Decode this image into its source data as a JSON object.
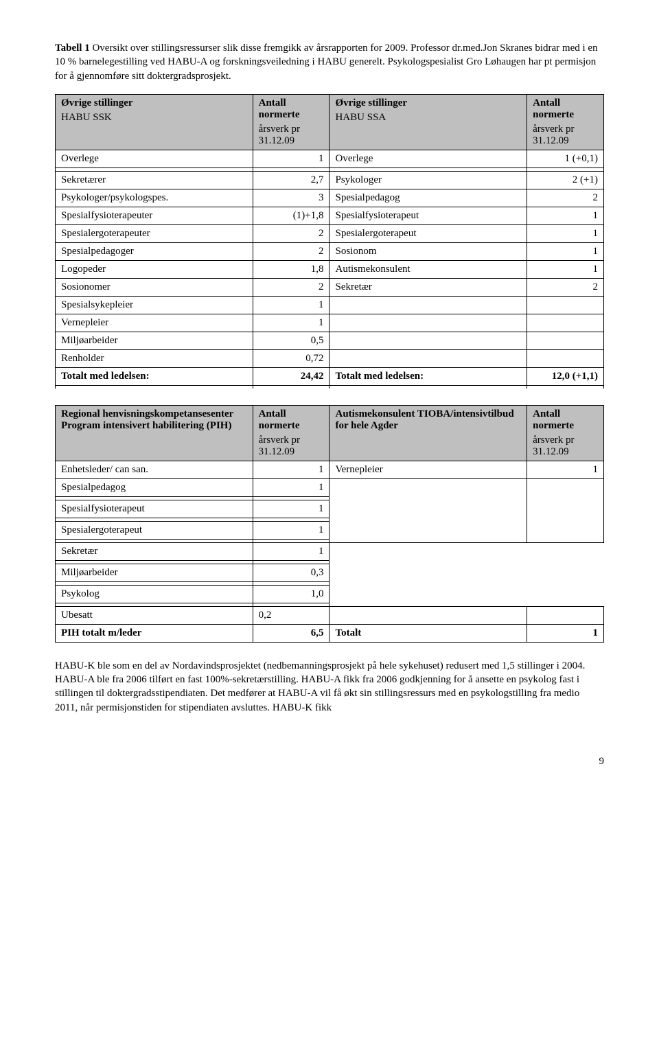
{
  "intro": {
    "strong": "Tabell 1",
    "rest": " Oversikt over stillingsressurser slik disse fremgikk av årsrapporten for 2009. Professor dr.med.Jon Skranes bidrar med  i en 10 % barnelegestilling ved HABU-A og forskningsveiledning i HABU generelt. Psykologspesialist Gro Løhaugen har pt permisjon for å gjennomføre sitt doktergradsprosjekt."
  },
  "table1": {
    "header": {
      "c1a": "Øvrige stillinger",
      "c1b": "HABU SSK",
      "c2a": "Antall normerte",
      "c2b": "årsverk pr 31.12.09",
      "c3a": "Øvrige stillinger",
      "c3b": "HABU SSA",
      "c4a": "Antall normerte",
      "c4b": "årsverk pr 31.12.09"
    },
    "overlege": {
      "l1": "Overlege",
      "v1": "1",
      "l2": "Overlege",
      "v2": "1 (+0,1)"
    },
    "rows": [
      {
        "l1": "Sekretærer",
        "v1": "2,7",
        "l2": "Psykologer",
        "v2": "2 (+1)"
      },
      {
        "l1": "Psykologer/psykologspes.",
        "v1": "3",
        "l2": "Spesialpedagog",
        "v2": "2"
      },
      {
        "l1": "Spesialfysioterapeuter",
        "v1": "(1)+1,8",
        "l2": "Spesialfysioterapeut",
        "v2": "1"
      },
      {
        "l1": "Spesialergoterapeuter",
        "v1": "2",
        "l2": "Spesialergoterapeut",
        "v2": "1"
      },
      {
        "l1": "Spesialpedagoger",
        "v1": "2",
        "l2": "Sosionom",
        "v2": "1"
      },
      {
        "l1": "Logopeder",
        "v1": "1,8",
        "l2": "Autismekonsulent",
        "v2": "1"
      },
      {
        "l1": "Sosionomer",
        "v1": "2",
        "l2": "Sekretær",
        "v2": "2"
      },
      {
        "l1": "Spesialsykepleier",
        "v1": "1",
        "l2": "",
        "v2": ""
      },
      {
        "l1": "Vernepleier",
        "v1": "1",
        "l2": "",
        "v2": ""
      },
      {
        "l1": "Miljøarbeider",
        "v1": "0,5",
        "l2": "",
        "v2": ""
      },
      {
        "l1": "Renholder",
        "v1": "0,72",
        "l2": "",
        "v2": ""
      }
    ],
    "total": {
      "l1": "Totalt med ledelsen:",
      "v1": "24,42",
      "l2": "Totalt med ledelsen:",
      "v2": "12,0 (+1,1)"
    }
  },
  "table2": {
    "header": {
      "c1": "Regional henvisningskompetansesenter Program intensivert habilitering (PIH)",
      "c2a": "Antall normerte",
      "c2b": "årsverk pr 31.12.09",
      "c3": "Autismekonsulent TIOBA/intensivtilbud for hele Agder",
      "c4a": "Antall normerte",
      "c4b": "årsverk pr 31.12.09"
    },
    "first": {
      "l1": "Enhetsleder/ can san.",
      "v1": "1",
      "l2": "Vernepleier",
      "v2": "1"
    },
    "rows": [
      {
        "l1": "Spesialpedagog",
        "v1": "1"
      },
      {
        "l1": "Spesialfysioterapeut",
        "v1": "1"
      },
      {
        "l1": "Spesialergoterapeut",
        "v1": "1"
      },
      {
        "l1": "Sekretær",
        "v1": "1"
      },
      {
        "l1": "Miljøarbeider",
        "v1": "0,3"
      },
      {
        "l1": "Psykolog",
        "v1": "1,0"
      }
    ],
    "ubesatt": {
      "l1": "Ubesatt",
      "v1": "0,2"
    },
    "total": {
      "l1": "PIH totalt m/leder",
      "v1": "6,5",
      "l2": "Totalt",
      "v2": "1"
    }
  },
  "after": "HABU-K ble som en del av Nordavindsprosjektet (nedbemanningsprosjekt på hele sykehuset) redusert med 1,5 stillinger i 2004. HABU-A ble fra 2006 tilført en fast 100%-sekretærstilling. HABU-A fikk fra 2006 godkjenning for å ansette en psykolog fast i stillingen til doktergradsstipendiaten. Det medfører at HABU-A vil få økt sin stillingsressurs med en psykologstilling fra medio 2011, når permisjonstiden for stipendiaten avsluttes. HABU-K fikk",
  "pagenum": "9"
}
